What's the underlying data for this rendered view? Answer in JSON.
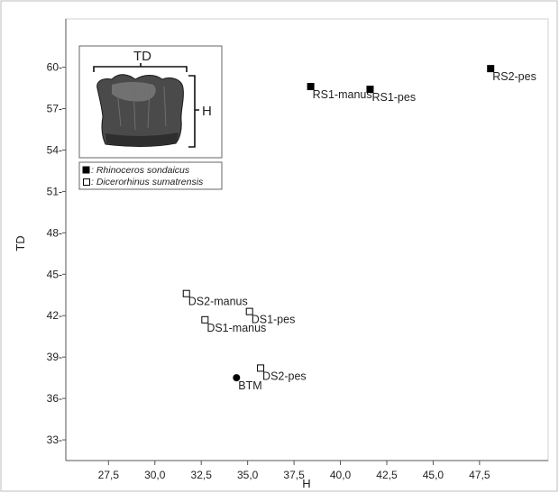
{
  "chart_data": {
    "type": "scatter",
    "title": "",
    "xlabel": "H",
    "ylabel": "TD",
    "xlim": [
      25.2,
      51.2
    ],
    "ylim": [
      31.5,
      63.5
    ],
    "x_ticks": [
      "27,5",
      "30,0",
      "32,5",
      "35,0",
      "37,5",
      "40,0",
      "42,5",
      "45,0",
      "47,5"
    ],
    "x_tick_values": [
      27.5,
      30.0,
      32.5,
      35.0,
      37.5,
      40.0,
      42.5,
      45.0,
      47.5
    ],
    "y_ticks": [
      "33-",
      "36-",
      "39-",
      "42-",
      "45-",
      "48-",
      "51-",
      "54-",
      "57-",
      "60-"
    ],
    "y_tick_values": [
      33,
      36,
      39,
      42,
      45,
      48,
      51,
      54,
      57,
      60
    ],
    "grid": false,
    "legend_position": "top-left",
    "series": [
      {
        "name": ": Rhinoceros sondaicus",
        "marker": "filled-square",
        "color": "#000000",
        "points": [
          {
            "label": "RS1-manus",
            "x": 38.4,
            "y": 58.6
          },
          {
            "label": "RS1-pes",
            "x": 41.6,
            "y": 58.4
          },
          {
            "label": "RS2-pes",
            "x": 48.1,
            "y": 59.9
          }
        ]
      },
      {
        "name": ": Dicerorhinus sumatrensis",
        "marker": "open-square",
        "color": "#000000",
        "points": [
          {
            "label": "DS2-manus",
            "x": 31.7,
            "y": 43.6
          },
          {
            "label": "DS1-pes",
            "x": 35.1,
            "y": 42.3
          },
          {
            "label": "DS1-manus",
            "x": 32.7,
            "y": 41.7
          },
          {
            "label": "DS2-pes",
            "x": 35.7,
            "y": 38.2
          }
        ]
      },
      {
        "marker": "filled-circle",
        "color": "#000000",
        "points": [
          {
            "label": "BTM",
            "x": 34.4,
            "y": 37.5
          }
        ]
      }
    ],
    "inset": {
      "width_label": "TD",
      "height_label": "H"
    }
  }
}
